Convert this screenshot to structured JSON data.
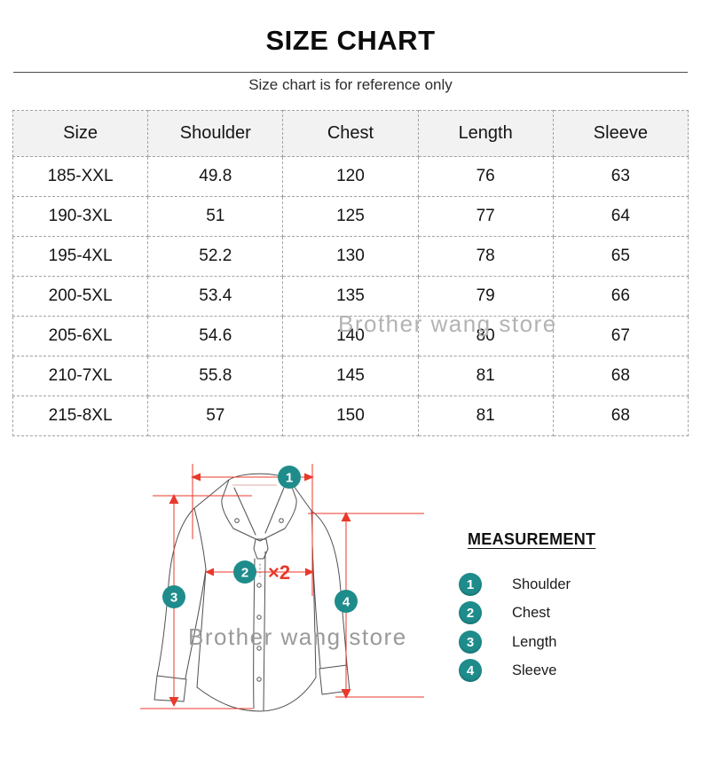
{
  "page": {
    "title": "SIZE CHART",
    "subtitle": "Size chart is for reference only"
  },
  "table": {
    "columns": [
      "Size",
      "Shoulder",
      "Chest",
      "Length",
      "Sleeve"
    ],
    "rows": [
      [
        "185-XXL",
        "49.8",
        "120",
        "76",
        "63"
      ],
      [
        "190-3XL",
        "51",
        "125",
        "77",
        "64"
      ],
      [
        "195-4XL",
        "52.2",
        "130",
        "78",
        "65"
      ],
      [
        "200-5XL",
        "53.4",
        "135",
        "79",
        "66"
      ],
      [
        "205-6XL",
        "54.6",
        "140",
        "80",
        "67"
      ],
      [
        "210-7XL",
        "55.8",
        "145",
        "81",
        "68"
      ],
      [
        "215-8XL",
        "57",
        "150",
        "81",
        "68"
      ]
    ]
  },
  "watermark": {
    "text": "Brother wang store"
  },
  "diagram": {
    "multiplier_label": "×2",
    "markers": [
      "1",
      "2",
      "3",
      "4"
    ]
  },
  "legend": {
    "title": "MEASUREMENT",
    "items": [
      {
        "num": "1",
        "label": "Shoulder"
      },
      {
        "num": "2",
        "label": "Chest"
      },
      {
        "num": "3",
        "label": "Length"
      },
      {
        "num": "4",
        "label": "Sleeve"
      }
    ]
  },
  "colors": {
    "accent_teal": "#1f8c8c",
    "arrow_red": "#e8392b",
    "header_bg": "#f2f2f2",
    "table_border": "#a2a2a2",
    "watermark_gray": "#b3b3b3"
  }
}
